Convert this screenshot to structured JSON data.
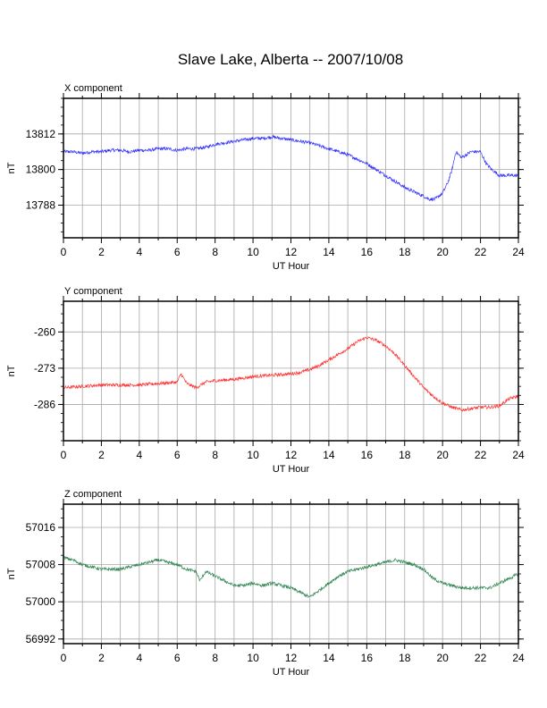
{
  "title": "Slave Lake, Alberta -- 2007/10/08",
  "chart_data": [
    {
      "type": "line",
      "title": "X component",
      "xlabel": "UT Hour",
      "ylabel": "nT",
      "xlim": [
        0,
        24
      ],
      "ylim": [
        13777,
        13824
      ],
      "xticks": [
        0,
        2,
        4,
        6,
        8,
        10,
        12,
        14,
        16,
        18,
        20,
        22,
        24
      ],
      "yticks": [
        13788,
        13800,
        13812
      ],
      "grid": true,
      "color": "#3333ff",
      "series": [
        {
          "x": [
            0,
            0.5,
            1,
            1.5,
            2,
            2.5,
            3,
            3.5,
            4,
            4.5,
            5,
            5.5,
            6,
            6.5,
            7,
            7.5,
            8,
            8.5,
            9,
            9.5,
            10,
            10.5,
            11,
            11.5,
            12,
            12.5,
            13,
            13.5,
            14,
            14.5,
            15,
            15.5,
            16,
            16.5,
            17,
            17.5,
            18,
            18.5,
            19,
            19.3,
            19.6,
            20,
            20.3,
            20.5,
            20.7,
            21,
            21.5,
            22,
            22.3,
            22.6,
            23,
            23.5,
            24
          ],
          "values": [
            13806,
            13806,
            13805.5,
            13806,
            13806,
            13806.5,
            13806.5,
            13806,
            13806.5,
            13806.5,
            13807,
            13807,
            13806.5,
            13807,
            13807,
            13807.5,
            13808.5,
            13809,
            13809.5,
            13810,
            13810.5,
            13810.5,
            13811,
            13810.5,
            13810,
            13809.5,
            13809,
            13808,
            13807,
            13806,
            13805,
            13803.5,
            13802,
            13800,
            13798,
            13796,
            13794,
            13792.5,
            13791,
            13790,
            13790,
            13792,
            13796,
            13800,
            13806,
            13804,
            13806,
            13806,
            13802,
            13800,
            13798,
            13798,
            13798
          ]
        }
      ]
    },
    {
      "type": "line",
      "title": "Y component",
      "xlabel": "UT Hour",
      "ylabel": "nT",
      "xlim": [
        0,
        24
      ],
      "ylim": [
        -299,
        -249
      ],
      "xticks": [
        0,
        2,
        4,
        6,
        8,
        10,
        12,
        14,
        16,
        18,
        20,
        22,
        24
      ],
      "yticks": [
        -260,
        -273,
        -286
      ],
      "grid": true,
      "color": "#ff3333",
      "series": [
        {
          "x": [
            0,
            1,
            2,
            3,
            4,
            5,
            6,
            6.2,
            6.5,
            7,
            7.5,
            8,
            9,
            10,
            11,
            12,
            12.5,
            13,
            13.5,
            14,
            14.5,
            15,
            15.5,
            16,
            16.5,
            17,
            17.5,
            18,
            18.5,
            19,
            19.5,
            20,
            20.5,
            21,
            21.5,
            22,
            22.5,
            23,
            23.5,
            24
          ],
          "values": [
            -280,
            -279.5,
            -279,
            -279,
            -279,
            -278.5,
            -278,
            -275,
            -278.5,
            -280,
            -278,
            -277.5,
            -277,
            -276,
            -275.5,
            -275,
            -274.5,
            -273.5,
            -272,
            -270,
            -268,
            -266,
            -263.5,
            -262,
            -263,
            -265,
            -268,
            -272,
            -276,
            -280,
            -283,
            -285.5,
            -287,
            -288,
            -287.5,
            -287,
            -287,
            -286.5,
            -284,
            -283
          ]
        }
      ]
    },
    {
      "type": "line",
      "title": "Z component",
      "xlabel": "UT Hour",
      "ylabel": "nT",
      "xlim": [
        0,
        24
      ],
      "ylim": [
        56991,
        57021
      ],
      "xticks": [
        0,
        2,
        4,
        6,
        8,
        10,
        12,
        14,
        16,
        18,
        20,
        22,
        24
      ],
      "yticks": [
        56992,
        57000,
        57008,
        57016
      ],
      "grid": true,
      "color": "#338855",
      "series": [
        {
          "x": [
            0,
            0.5,
            1,
            1.5,
            2,
            2.5,
            3,
            3.5,
            4,
            4.5,
            5,
            5.5,
            6,
            6.5,
            7,
            7.2,
            7.5,
            8,
            8.5,
            9,
            9.5,
            10,
            10.5,
            11,
            11.5,
            12,
            12.5,
            13,
            13.5,
            14,
            14.5,
            15,
            15.5,
            16,
            16.5,
            17,
            17.5,
            18,
            18.5,
            19,
            19.5,
            20,
            20.5,
            21,
            21.5,
            22,
            22.5,
            23,
            23.5,
            24
          ],
          "values": [
            57009.5,
            57009,
            57008,
            57007.5,
            57007,
            57007,
            57007,
            57007.5,
            57008,
            57008.5,
            57009,
            57008.5,
            57008,
            57007,
            57006.5,
            57004.5,
            57006.5,
            57005.5,
            57004.5,
            57003.5,
            57003.5,
            57004,
            57003.5,
            57004,
            57003.5,
            57003,
            57002,
            57001,
            57002.5,
            57004,
            57005.5,
            57006.5,
            57007,
            57007.5,
            57008,
            57008.5,
            57009,
            57008.5,
            57008,
            57007,
            57005,
            57004,
            57003.5,
            57003,
            57003,
            57003,
            57003,
            57004,
            57005,
            57006
          ]
        }
      ]
    }
  ]
}
